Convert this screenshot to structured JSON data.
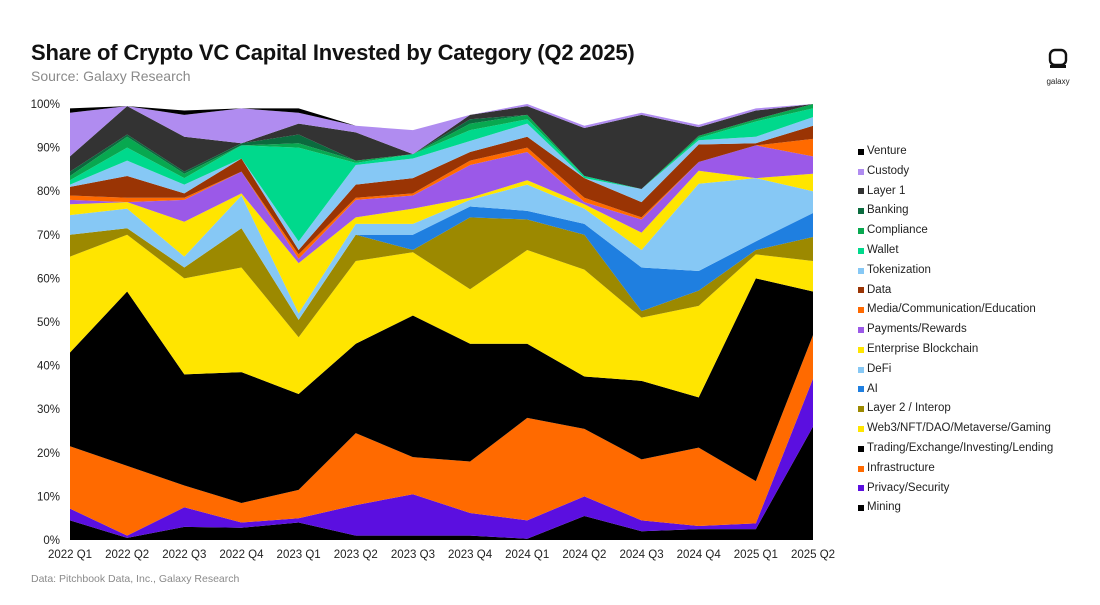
{
  "header": {
    "title": "Share of Crypto VC Capital Invested by Category (Q2 2025)",
    "subtitle": "Source: Galaxy Research"
  },
  "logo": {
    "text": "galaxy",
    "icon": "galaxy-logo-icon"
  },
  "footnote": "Data: Pitchbook Data, Inc., Galaxy Research",
  "chart_data": {
    "type": "area",
    "stacked": true,
    "title": "Share of Crypto VC Capital Invested by Category (Q2 2025)",
    "xlabel": "",
    "ylabel": "",
    "ylim": [
      0,
      100
    ],
    "yticks": [
      "0%",
      "10%",
      "20%",
      "30%",
      "40%",
      "50%",
      "60%",
      "70%",
      "80%",
      "90%",
      "100%"
    ],
    "grid": false,
    "legend_position": "right",
    "categories": [
      "2022 Q1",
      "2022 Q2",
      "2022 Q3",
      "2022 Q4",
      "2023 Q1",
      "2023 Q2",
      "2023 Q3",
      "2023 Q4",
      "2024 Q1",
      "2024 Q2",
      "2024 Q3",
      "2024 Q4",
      "2025 Q1",
      "2025 Q2"
    ],
    "series": [
      {
        "name": "Mining",
        "color": "#000000",
        "values": [
          4.5,
          0.5,
          3,
          2.8,
          4,
          1,
          1,
          1,
          0.3,
          5.5,
          2,
          2.5,
          2.5,
          26
        ]
      },
      {
        "name": "Privacy/Security",
        "color": "#5b0fe0",
        "values": [
          2.7,
          0.5,
          4.5,
          1.2,
          1,
          7,
          9.5,
          5.2,
          4.2,
          4.5,
          2.5,
          0.7,
          1.3,
          11
        ]
      },
      {
        "name": "Infrastructure",
        "color": "#ff6a00",
        "values": [
          14.3,
          16,
          5,
          4.5,
          6.5,
          16.5,
          8.5,
          11.8,
          23.5,
          15.5,
          14,
          18,
          9.7,
          10
        ]
      },
      {
        "name": "Trading/Exchange/Investing/Lending",
        "color": "#000000",
        "values": [
          21.5,
          40,
          25.5,
          30,
          22,
          20.5,
          32.5,
          27,
          17,
          12,
          18,
          11.5,
          46.5,
          10
        ]
      },
      {
        "name": "Web3/NFT/DAO/Metaverse/Gaming",
        "color": "#ffe500",
        "values": [
          22,
          13,
          22,
          24,
          13,
          19,
          14.5,
          12.5,
          21.5,
          24.5,
          14.5,
          21,
          5.5,
          7
        ]
      },
      {
        "name": "Layer 2 / Interop",
        "color": "#9c8900",
        "values": [
          5,
          1.5,
          2.5,
          9,
          4,
          6,
          0.5,
          16.5,
          7,
          8,
          1.5,
          3.5,
          1,
          5.5
        ]
      },
      {
        "name": "AI",
        "color": "#1f7fe0",
        "values": [
          0,
          0,
          0,
          0,
          0,
          0,
          3.5,
          2.5,
          2,
          2.5,
          10,
          4.5,
          2,
          5.5
        ]
      },
      {
        "name": "DeFi",
        "color": "#86c8f5",
        "values": [
          4.5,
          4.5,
          2.5,
          7.5,
          1.5,
          2.5,
          2.5,
          1.5,
          6,
          3.5,
          4,
          20,
          14.5,
          5
        ]
      },
      {
        "name": "Enterprise Blockchain",
        "color": "#ffe500",
        "values": [
          2.5,
          1.5,
          8,
          0.5,
          11.5,
          1.5,
          3.5,
          0.5,
          1,
          1,
          4,
          3,
          0,
          4
        ]
      },
      {
        "name": "Payments/Rewards",
        "color": "#9b59e8",
        "values": [
          1,
          0,
          5,
          5,
          1,
          4,
          3,
          7.5,
          6.5,
          0.5,
          3,
          2,
          7.5,
          4
        ]
      },
      {
        "name": "Media/Communication/Education",
        "color": "#ff6a00",
        "values": [
          1,
          1,
          0.5,
          0,
          1,
          0.5,
          0.5,
          1,
          1,
          1,
          0.5,
          0,
          0,
          4
        ]
      },
      {
        "name": "Data",
        "color": "#9a3404",
        "values": [
          2,
          5,
          1,
          3,
          1,
          3,
          3.5,
          2,
          2.5,
          4.5,
          3.5,
          4,
          0.5,
          3
        ]
      },
      {
        "name": "Tokenization",
        "color": "#86c8f5",
        "values": [
          0.5,
          3.5,
          2,
          0,
          2,
          4.5,
          4.5,
          2.5,
          3,
          0,
          3,
          1,
          1.5,
          2
        ]
      },
      {
        "name": "Wallet",
        "color": "#00d98c",
        "values": [
          1,
          3,
          1.5,
          3,
          21.5,
          0.5,
          1,
          2.5,
          1,
          0.5,
          0,
          0.5,
          3.5,
          2
        ]
      },
      {
        "name": "Compliance",
        "color": "#08a850",
        "values": [
          1,
          2.5,
          1,
          0,
          1,
          0.5,
          0,
          1.5,
          1,
          0,
          0,
          0.5,
          0.5,
          1
        ]
      },
      {
        "name": "Banking",
        "color": "#0b6b3e",
        "values": [
          1,
          0.5,
          0.5,
          0.5,
          2,
          0,
          0,
          1,
          0,
          0,
          0,
          0,
          0,
          0
        ]
      },
      {
        "name": "Layer 1",
        "color": "#333333",
        "values": [
          3.5,
          6.5,
          8,
          0,
          2.5,
          6.5,
          0,
          1,
          2,
          11,
          17,
          2,
          2,
          0
        ]
      },
      {
        "name": "Custody",
        "color": "#b08cf0",
        "values": [
          10,
          0,
          5,
          8,
          2.5,
          1.5,
          5.5,
          0,
          0.5,
          0.5,
          0.5,
          0.5,
          0.5,
          0
        ]
      },
      {
        "name": "Venture",
        "color": "#000000",
        "values": [
          1,
          0,
          1,
          0,
          1,
          0,
          0,
          0,
          0,
          0,
          0,
          0,
          0,
          0
        ]
      }
    ]
  }
}
